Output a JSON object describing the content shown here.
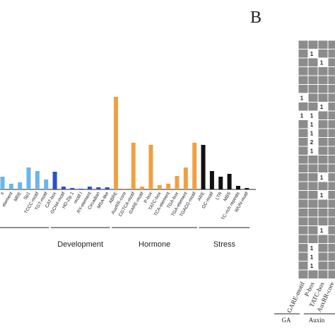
{
  "chart_data": {
    "type": "bar",
    "groups": [
      {
        "color": "#6cb4ea",
        "categories": [
          "s",
          "element",
          "MRE",
          "Sp1",
          "TCCC-motif",
          "TGT-motif"
        ],
        "values": [
          18,
          8,
          10,
          31,
          26,
          14
        ]
      },
      {
        "name": "Development",
        "color": "#2a52c9",
        "categories": [
          "CAT-box",
          "GCN4-motif",
          "HD-Zip 1",
          "motif I",
          "RY-element",
          "Circadian",
          "MSA-like"
        ],
        "values": [
          25,
          4,
          2,
          1,
          4,
          3,
          3
        ]
      },
      {
        "name": "Hormone",
        "color": "#f0a040",
        "categories": [
          "ABRE",
          "AuxRR-core",
          "CGTCA-motif",
          "GARE-motif",
          "P-box",
          "TATC-box",
          "TCA-element",
          "TGA-box",
          "TGA-element",
          "TGACG-motif"
        ],
        "values": [
          131,
          1,
          66,
          4,
          63,
          6,
          8,
          19,
          31,
          66
        ]
      },
      {
        "name": "Stress",
        "color": "#111111",
        "categories": [
          "ARE",
          "GC-motif",
          "LTR",
          "MBS",
          "TC-rich repeats",
          "WUN-motif"
        ],
        "values": [
          63,
          26,
          18,
          22,
          5,
          2
        ]
      }
    ],
    "heatmap": {
      "panel": "B",
      "columns": [
        "GARE-motif",
        "P-box",
        "TATC-box",
        "AuxRR-core"
      ],
      "column_groups": [
        "GA",
        "Auxin"
      ],
      "rows": [
        [
          null,
          null,
          null,
          null
        ],
        [
          null,
          1,
          null,
          null
        ],
        [
          null,
          null,
          1,
          null
        ],
        [
          null,
          null,
          null,
          null
        ],
        [
          null,
          null,
          null,
          null
        ],
        [
          null,
          null,
          null,
          null
        ],
        [
          1,
          null,
          null,
          null
        ],
        [
          null,
          null,
          1,
          null
        ],
        [
          1,
          1,
          null,
          null
        ],
        [
          null,
          1,
          null,
          null
        ],
        [
          null,
          1,
          null,
          null
        ],
        [
          null,
          2,
          null,
          null
        ],
        [
          null,
          1,
          null,
          null
        ],
        [
          null,
          null,
          null,
          null
        ],
        [
          null,
          null,
          null,
          null
        ],
        [
          null,
          null,
          1,
          null
        ],
        [
          null,
          null,
          null,
          null
        ],
        [
          null,
          null,
          1,
          null
        ],
        [
          null,
          null,
          null,
          null
        ],
        [
          null,
          null,
          null,
          null
        ],
        [
          null,
          null,
          null,
          null
        ],
        [
          null,
          null,
          1,
          null
        ],
        [
          null,
          null,
          null,
          null
        ],
        [
          null,
          1,
          null,
          null
        ],
        [
          null,
          1,
          null,
          null
        ],
        [
          null,
          1,
          null,
          null
        ],
        [
          null,
          null,
          null,
          null
        ]
      ]
    }
  }
}
